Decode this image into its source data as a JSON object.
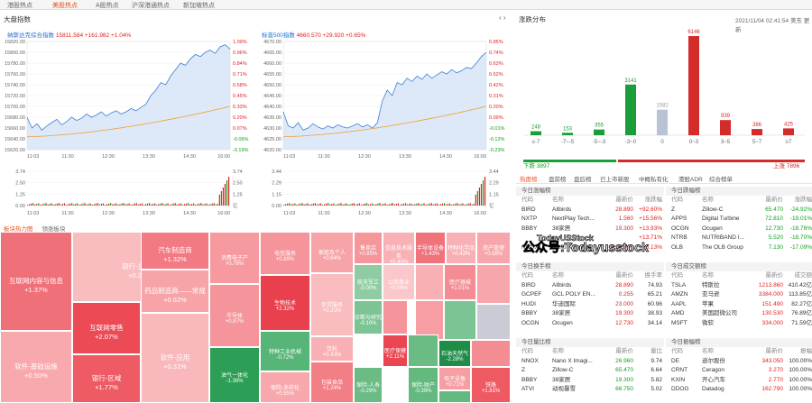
{
  "top_tabs": [
    "港股热点",
    "美股热点",
    "A股热点",
    "沪深港通热点",
    "新加坡热点"
  ],
  "active_tab": 1,
  "left_title": "大盘指数",
  "nasdaq": {
    "name": "纳斯达克综合指数",
    "value": "15811.584",
    "change": "+161.982",
    "pct": "+1.04%",
    "y_left": [
      "15820.00",
      "15800.00",
      "15780.00",
      "15760.00",
      "15740.00",
      "15720.00",
      "15700.00",
      "15680.00",
      "15660.00",
      "15640.00",
      "15620.00"
    ],
    "y_right": [
      "1.09%",
      "0.96%",
      "0.84%",
      "0.71%",
      "0.58%",
      "0.45%",
      "0.33%",
      "0.20%",
      "0.07%",
      "-0.06%",
      "-0.19%"
    ],
    "vol_left": [
      "3.74",
      "2.50",
      "1.25",
      "0.00"
    ],
    "vol_right": [
      "3.74",
      "2.50",
      "1.25",
      "亿"
    ],
    "x_labels": [
      "11:03",
      "11:30",
      "12:30",
      "13:30",
      "14:30",
      "16:00"
    ]
  },
  "sp500": {
    "name": "标普500指数",
    "value": "4660.570",
    "change": "+29.920",
    "pct": "+0.65%",
    "y_left": [
      "4670.00",
      "4665.00",
      "4660.00",
      "4655.00",
      "4650.00",
      "4645.00",
      "4640.00",
      "4635.00",
      "4630.00",
      "4625.00",
      "4620.00"
    ],
    "y_right": [
      "0.85%",
      "0.74%",
      "0.63%",
      "0.52%",
      "0.42%",
      "0.31%",
      "0.20%",
      "0.09%",
      "-0.01%",
      "-0.12%",
      "-0.23%"
    ],
    "vol_left": [
      "3.44",
      "2.29",
      "1.15",
      "0.00"
    ],
    "vol_right": [
      "3.44",
      "2.29",
      "1.15",
      "亿"
    ],
    "x_labels": [
      "11:03",
      "11:30",
      "12:30",
      "13:30",
      "14:30",
      "16:00"
    ]
  },
  "heatmap": {
    "tabs": [
      "板块热力图",
      "领涨板块"
    ],
    "cells": [
      {
        "name": "互联网内容与信息",
        "pct": "+1.37%",
        "color": "#f0707a"
      },
      {
        "name": "软件-基础设施",
        "pct": "+0.50%",
        "color": "#f7a9ad"
      },
      {
        "name": "银行-多样化",
        "pct": "+0.20%",
        "color": "#f9bcbf"
      },
      {
        "name": "互联网零售",
        "pct": "+2.07%",
        "color": "#ec4a55"
      },
      {
        "name": "银行-区域",
        "pct": "+1.77%",
        "color": "#ee5b65"
      },
      {
        "name": "汽车制造商",
        "pct": "+1.32%",
        "color": "#f27a83"
      },
      {
        "name": "药品制造商——常规",
        "pct": "+0.62%",
        "color": "#f7a4a9"
      },
      {
        "name": "软件-应用",
        "pct": "+0.31%",
        "color": "#f9b8bc"
      },
      {
        "name": "消费电子产",
        "pct": "+0.78%",
        "color": "#f69aa0"
      },
      {
        "name": "半导体",
        "pct": "+0.87%",
        "color": "#f5949a"
      },
      {
        "name": "油气一体化",
        "pct": "-1.38%",
        "color": "#2c9e55"
      },
      {
        "name": "电信服务",
        "pct": "+0.89%",
        "color": "#f5949a"
      },
      {
        "name": "生物技术",
        "pct": "+2.32%",
        "color": "#e8404c"
      },
      {
        "name": "特种工业机械",
        "pct": "-0.72%",
        "color": "#56b577"
      },
      {
        "name": "保险-多样化",
        "pct": "+0.55%",
        "color": "#f8a8ad"
      },
      {
        "name": "家庭及个人",
        "pct": "+0.64%",
        "color": "#f7a4a9"
      },
      {
        "name": "信贷服务",
        "pct": "+0.20%",
        "color": "#f9bcbf"
      },
      {
        "name": "饮料",
        "pct": "+0.43%",
        "color": "#f8b0b4"
      },
      {
        "name": "包装食品",
        "pct": "+1.24%",
        "color": "#f27e86"
      },
      {
        "name": "售卖店",
        "pct": "+0.85%",
        "color": "#f5969b"
      },
      {
        "name": "航天军工",
        "pct": "-0.00%",
        "color": "#8fcca3"
      },
      {
        "name": "信息技术服务",
        "pct": "+0.40%",
        "color": "#f8b2b6"
      },
      {
        "name": "公用事业",
        "pct": "+0.06%",
        "color": "#fac7ca"
      },
      {
        "name": "诊断与研究",
        "pct": "-0.10%",
        "color": "#7cc493"
      },
      {
        "name": "医疗保健",
        "pct": "+2.11%",
        "color": "#ea4652"
      },
      {
        "name": "保险-人寿",
        "pct": "-0.29%",
        "color": "#6abb84"
      },
      {
        "name": "半导体设备",
        "pct": "+1.43%",
        "color": "#f0727b"
      },
      {
        "name": "医疗器械",
        "pct": "+1.01%",
        "color": "#f48d93"
      },
      {
        "name": "特种化学品",
        "pct": "+0.43%",
        "color": "#f8b0b4"
      },
      {
        "name": "资产管理",
        "pct": "+0.58%",
        "color": "#f7a6ab"
      },
      {
        "name": "石油天然气",
        "pct": "-2.28%",
        "color": "#1f8c48"
      },
      {
        "name": "电子设备",
        "pct": "+0.71%",
        "color": "#f69ea3"
      },
      {
        "name": "铁路",
        "pct": "+1.81%",
        "color": "#ee5962"
      },
      {
        "name": "保险-财产",
        "pct": "-0.39%",
        "color": "#63b97e"
      }
    ]
  },
  "right_panel": {
    "title": "涨跌分布",
    "datetime": "2021/11/04 02:41:54 美东",
    "more": "更新",
    "dist": {
      "values": [
        248,
        153,
        355,
        3141,
        1582,
        6146,
        939,
        386,
        425
      ],
      "labels": [
        "≤-7",
        "-7~-5",
        "-5~-3",
        "-3~0",
        "0",
        "0~3",
        "3~5",
        "5~7",
        "≥7"
      ],
      "colors": [
        "#1b9e3a",
        "#1b9e3a",
        "#1b9e3a",
        "#1b9e3a",
        "#b8c4d6",
        "#d42b2b",
        "#d42b2b",
        "#d42b2b",
        "#d42b2b"
      ]
    },
    "down_total": "下跌 3897",
    "up_total": "上涨 7896",
    "subtabs": [
      "热度榜",
      "盘前榜",
      "盘后榜",
      "已上市新股",
      "中概私有化",
      "港股ADR",
      "综合榜单"
    ],
    "gainers": {
      "title": "今日涨幅榜",
      "headers": [
        "代码",
        "名称",
        "最新价",
        "涨跌幅"
      ],
      "rows": [
        [
          "BIRD",
          "Allbirds",
          "28.890",
          "+92.60%"
        ],
        [
          "NXTP",
          "NextPlay Tech...",
          "1.560",
          "+15.56%"
        ],
        [
          "BBBY",
          "38家居",
          "19.300",
          "+13.93%"
        ],
        [
          "",
          "",
          "",
          "+13.71%"
        ],
        [
          "NNOX",
          "Nano X Imagi...",
          "26.960",
          "+13.13%"
        ]
      ]
    },
    "losers": {
      "title": "今日跌幅榜",
      "headers": [
        "代码",
        "名称",
        "最新价",
        "涨跌幅"
      ],
      "rows": [
        [
          "Z",
          "Zillow-C",
          "65.470",
          "-24.92%"
        ],
        [
          "APPS",
          "Digital Turbine",
          "72.810",
          "-19.01%"
        ],
        [
          "OCGN",
          "Ocugen",
          "12.730",
          "-18.76%"
        ],
        [
          "NTRB",
          "NUTRIBAND I...",
          "5.520",
          "-18.70%"
        ],
        [
          "OLB",
          "The OLB Group",
          "7.130",
          "-17.09%"
        ]
      ]
    },
    "turnover": {
      "title": "今日换手榜",
      "headers": [
        "代码",
        "名称",
        "最新价",
        "换手率"
      ],
      "rows": [
        [
          "BIRD",
          "Allbirds",
          "28.890",
          "74.93"
        ],
        [
          "GCPEF",
          "GCL POLY EN...",
          "0.255",
          "65.21"
        ],
        [
          "HUDI",
          "华迪国际",
          "23.000",
          "60.96"
        ],
        [
          "BBBY",
          "38家居",
          "19.300",
          "38.93"
        ],
        [
          "OCGN",
          "Ocugen",
          "12.730",
          "34.14"
        ]
      ]
    },
    "amount": {
      "title": "今日成交额榜",
      "headers": [
        "代码",
        "名称",
        "最新价",
        "成交额"
      ],
      "rows": [
        [
          "TSLA",
          "特斯拉",
          "1213.860",
          "410.42亿"
        ],
        [
          "AMZN",
          "亚马逊",
          "3384.000",
          "113.85亿"
        ],
        [
          "AAPL",
          "苹果",
          "151.490",
          "82.27亿"
        ],
        [
          "AMD",
          "美国超微公司",
          "130.530",
          "76.89亿"
        ],
        [
          "MSFT",
          "微软",
          "334.000",
          "71.59亿"
        ]
      ]
    },
    "volratio": {
      "title": "今日量比榜",
      "headers": [
        "代码",
        "名称",
        "最新价",
        "量比"
      ],
      "rows": [
        [
          "NNOX",
          "Nano X Imagi...",
          "26.960",
          "9.74"
        ],
        [
          "Z",
          "Zillow-C",
          "65.470",
          "6.64"
        ],
        [
          "BBBY",
          "38家居",
          "19.300",
          "5.82"
        ],
        [
          "ATVI",
          "动视暴雪",
          "66.750",
          "5.02"
        ]
      ]
    },
    "amplitude": {
      "title": "今日振幅榜",
      "headers": [
        "代码",
        "名称",
        "最新价",
        "振幅"
      ],
      "rows": [
        [
          "DE",
          "迪尔股份",
          "343.050",
          "100.00%"
        ],
        [
          "CRNT",
          "Ceragon",
          "3.270",
          "100.00%"
        ],
        [
          "KXIN",
          "开心汽车",
          "2.770",
          "100.00%"
        ],
        [
          "DDOG",
          "Datadog",
          "162.790",
          "100.00%"
        ]
      ]
    }
  },
  "watermark": {
    "small": "TodayUSStock",
    "big": "公众号:Todayusstock"
  }
}
